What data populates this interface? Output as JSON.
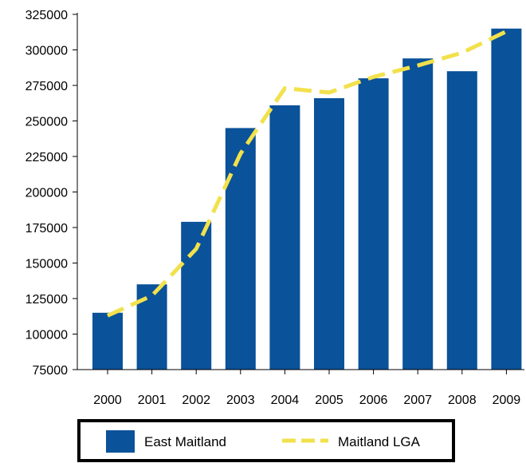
{
  "chart_data": {
    "type": "bar",
    "title": "",
    "xlabel": "",
    "ylabel": "",
    "categories": [
      "2000",
      "2001",
      "2002",
      "2003",
      "2004",
      "2005",
      "2006",
      "2007",
      "2008",
      "2009"
    ],
    "ylim": [
      75000,
      325000
    ],
    "yticks": [
      75000,
      100000,
      125000,
      150000,
      175000,
      200000,
      225000,
      250000,
      275000,
      300000,
      325000
    ],
    "ytick_labels": [
      "75000",
      "100000",
      "125000",
      "150000",
      "175000",
      "200000",
      "225000",
      "250000",
      "275000",
      "300000",
      "325000"
    ],
    "grid": false,
    "legend_position": "bottom",
    "series": [
      {
        "name": "East Maitland",
        "kind": "bar",
        "color": "#0A5299",
        "values": [
          115000,
          135000,
          179000,
          245000,
          261000,
          266000,
          280000,
          294000,
          285000,
          315000
        ]
      },
      {
        "name": "Maitland LGA",
        "kind": "line",
        "style": "dashed",
        "color": "#F2E14C",
        "values": [
          113000,
          127000,
          160000,
          227000,
          273000,
          270000,
          281000,
          289000,
          298000,
          313000
        ]
      }
    ]
  }
}
